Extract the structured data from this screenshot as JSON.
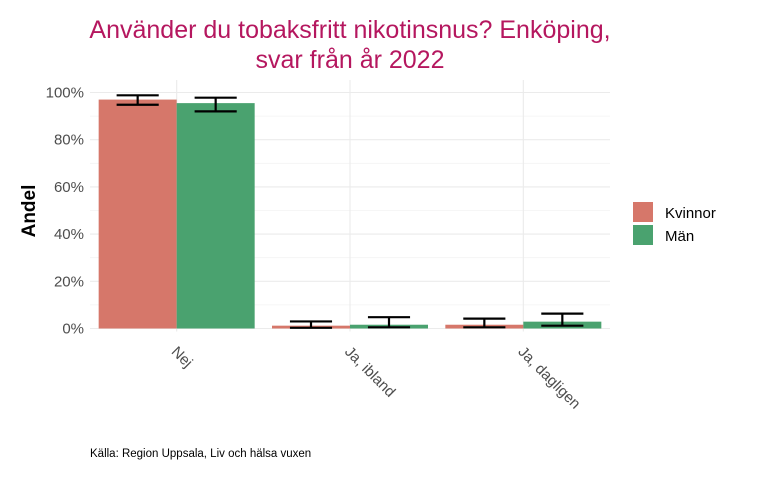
{
  "chart_data": {
    "type": "bar",
    "title": [
      "Använder du tobaksfritt nikotinsnus? Enköping,",
      "svar från år 2022"
    ],
    "ylabel": "Andel",
    "xlabel": "",
    "categories": [
      "Nej",
      "Ja, ibland",
      "Ja, dagligen"
    ],
    "ylim": [
      0,
      100
    ],
    "yticks": [
      0,
      20,
      40,
      60,
      80,
      100
    ],
    "ytick_labels": [
      "0%",
      "20%",
      "40%",
      "60%",
      "80%",
      "100%"
    ],
    "series": [
      {
        "name": "Kvinnor",
        "color": "#d6776a",
        "values": [
          97,
          1.2,
          1.6
        ],
        "error_low": [
          94.8,
          0.3,
          0.5
        ],
        "error_high": [
          98.8,
          3.0,
          4.2
        ]
      },
      {
        "name": "Män",
        "color": "#4aa26f",
        "values": [
          95.5,
          1.6,
          2.9
        ],
        "error_low": [
          92.0,
          0.5,
          1.2
        ],
        "error_high": [
          97.8,
          4.8,
          6.3
        ]
      }
    ],
    "legend_position": "right",
    "grid": true,
    "caption": "Källa: Region Uppsala, Liv och hälsa vuxen"
  }
}
